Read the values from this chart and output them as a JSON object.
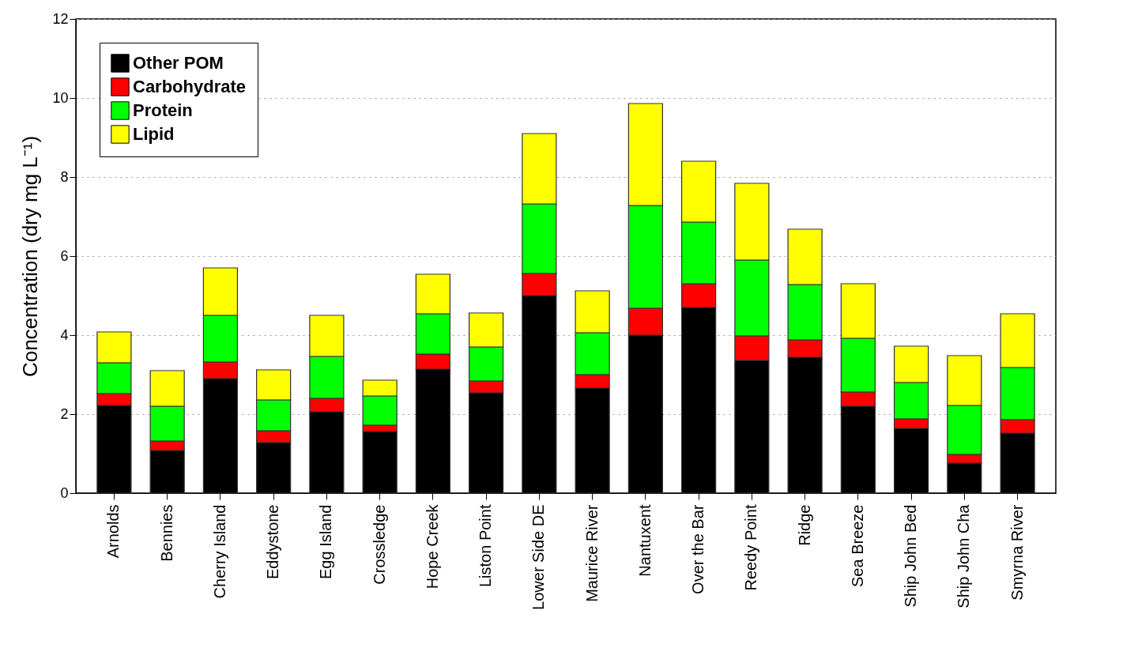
{
  "chart_data": {
    "type": "bar",
    "stacked": true,
    "ylabel": "Concentration (dry mg L⁻¹)",
    "categories": [
      "Arnolds",
      "Bennies",
      "Cherry Island",
      "Eddystone",
      "Egg Island",
      "Crossledge",
      "Hope Creek",
      "Liston Point",
      "Lower Side DE",
      "Maurice River",
      "Nantuxent",
      "Over the Bar",
      "Reedy Point",
      "Ridge",
      "Sea Breeze",
      "Ship John Bed",
      "Ship John Cha",
      "Smyrna River"
    ],
    "series": [
      {
        "name": "Other POM",
        "color": "#000000",
        "values": [
          2.22,
          1.08,
          2.9,
          1.28,
          2.06,
          1.56,
          3.14,
          2.54,
          5.0,
          2.66,
          4.0,
          4.7,
          3.36,
          3.44,
          2.2,
          1.64,
          0.76,
          1.52
        ]
      },
      {
        "name": "Carbohydrate",
        "color": "#ff0000",
        "values": [
          0.3,
          0.24,
          0.42,
          0.3,
          0.34,
          0.16,
          0.38,
          0.3,
          0.56,
          0.34,
          0.68,
          0.6,
          0.62,
          0.44,
          0.36,
          0.24,
          0.22,
          0.34
        ]
      },
      {
        "name": "Protein",
        "color": "#00ff00",
        "values": [
          0.78,
          0.88,
          1.18,
          0.78,
          1.06,
          0.74,
          1.02,
          0.86,
          1.76,
          1.06,
          2.6,
          1.56,
          1.92,
          1.4,
          1.36,
          0.92,
          1.24,
          1.32
        ]
      },
      {
        "name": "Lipid",
        "color": "#ffff00",
        "values": [
          0.78,
          0.9,
          1.2,
          0.76,
          1.04,
          0.4,
          1.0,
          0.86,
          1.78,
          1.06,
          2.58,
          1.54,
          1.94,
          1.4,
          1.38,
          0.92,
          1.26,
          1.36
        ]
      }
    ],
    "ylim": [
      0,
      12
    ],
    "yticks": [
      0,
      2,
      4,
      6,
      8,
      10,
      12
    ],
    "grid": "y",
    "legend": "top left"
  }
}
